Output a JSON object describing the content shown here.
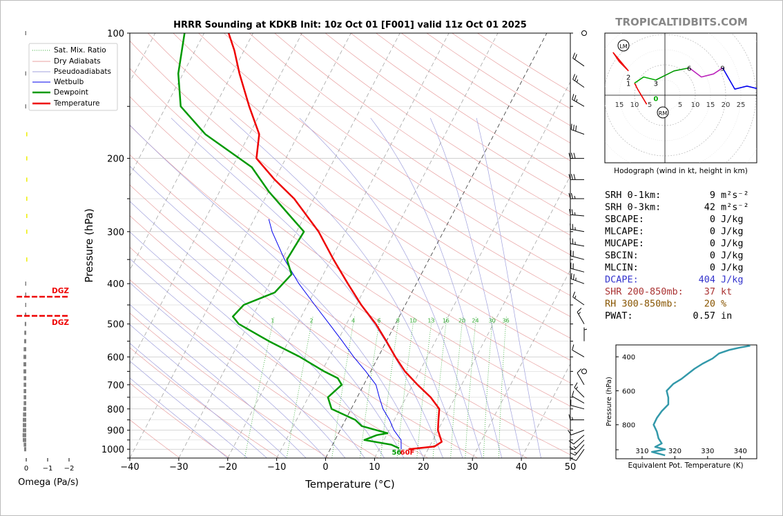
{
  "header": {
    "title": "HRRR Sounding at KDKB Init: 10z Oct 01 [F001] valid 11z Oct 01 2025",
    "watermark": "TROPICALTIDBITS.COM"
  },
  "colors": {
    "temperature": "#ee0000",
    "dewpoint": "#009900",
    "wetbulb": "#0000ee",
    "dry_adiabat": "#e8a0a0",
    "moist_adiabat": "#a0a0dd",
    "mixing_ratio": "#33aa33",
    "dgz": "#ee0000",
    "omega_pos": "#808080",
    "omega_neg": "#eeee00",
    "theta_e": "#3399aa",
    "hodo_0_1": "#ee0000",
    "hodo_1_3": "#00aa00",
    "hodo_3_6": "#009900",
    "hodo_6_9": "#bb22bb",
    "hodo_9_12": "#0000ee",
    "dcape": "#3333cc",
    "shr": "#aa3333",
    "rh": "#885500"
  },
  "legend": {
    "items": [
      "Sat. Mix. Ratio",
      "Dry Adiabats",
      "Pseudoadiabats",
      "Wetbulb",
      "Dewpoint",
      "Temperature"
    ]
  },
  "chart_data": [
    {
      "type": "line",
      "title": "HRRR Sounding at KDKB Init: 10z Oct 01 [F001] valid 11z Oct 01 2025",
      "xlabel": "Temperature (°C)",
      "ylabel": "Pressure (hPa)",
      "xlim": [
        -40,
        50
      ],
      "ylim": [
        1050,
        100
      ],
      "y_scale": "log",
      "skew": true,
      "x_ticks": [
        -40,
        -30,
        -20,
        -10,
        0,
        10,
        20,
        30,
        40,
        50
      ],
      "y_ticks": [
        1000,
        900,
        800,
        700,
        600,
        500,
        400,
        300,
        200,
        100
      ],
      "grid": true,
      "legend_position": "top-left",
      "mixing_ratio_labels": [
        1,
        2,
        4,
        6,
        8,
        10,
        13,
        16,
        20,
        24,
        30,
        36
      ],
      "surface_labels": {
        "dewpoint": "56",
        "temperature": "60F"
      },
      "series": [
        {
          "name": "Temperature",
          "points": [
            [
              1000,
              16.0
            ],
            [
              985,
              21.0
            ],
            [
              960,
              22.0
            ],
            [
              930,
              21.0
            ],
            [
              900,
              20.0
            ],
            [
              850,
              19.0
            ],
            [
              800,
              18.0
            ],
            [
              750,
              15.0
            ],
            [
              700,
              11.0
            ],
            [
              650,
              7.0
            ],
            [
              600,
              3.5
            ],
            [
              550,
              0.0
            ],
            [
              500,
              -4.0
            ],
            [
              450,
              -9.0
            ],
            [
              400,
              -14.0
            ],
            [
              350,
              -19.5
            ],
            [
              300,
              -25.5
            ],
            [
              250,
              -34.0
            ],
            [
              225,
              -40.0
            ],
            [
              200,
              -46.0
            ],
            [
              175,
              -48.0
            ],
            [
              150,
              -53.0
            ],
            [
              125,
              -58.5
            ],
            [
              110,
              -62.0
            ],
            [
              100,
              -65.0
            ]
          ]
        },
        {
          "name": "Dewpoint",
          "points": [
            [
              995,
              14.0
            ],
            [
              975,
              12.0
            ],
            [
              950,
              6.0
            ],
            [
              925,
              8.0
            ],
            [
              915,
              10.0
            ],
            [
              880,
              4.0
            ],
            [
              850,
              2.0
            ],
            [
              800,
              -4.0
            ],
            [
              750,
              -6.0
            ],
            [
              700,
              -4.5
            ],
            [
              675,
              -6.0
            ],
            [
              650,
              -9.5
            ],
            [
              600,
              -16.0
            ],
            [
              550,
              -24.0
            ],
            [
              500,
              -32.0
            ],
            [
              480,
              -34.0
            ],
            [
              450,
              -33.0
            ],
            [
              420,
              -28.0
            ],
            [
              380,
              -26.5
            ],
            [
              350,
              -29.0
            ],
            [
              300,
              -28.5
            ],
            [
              275,
              -33.0
            ],
            [
              240,
              -40.0
            ],
            [
              210,
              -46.0
            ],
            [
              175,
              -59.0
            ],
            [
              150,
              -67.0
            ],
            [
              125,
              -71.0
            ],
            [
              100,
              -74.0
            ]
          ]
        },
        {
          "name": "Wetbulb",
          "points": [
            [
              1000,
              14.5
            ],
            [
              950,
              13.5
            ],
            [
              900,
              11.0
            ],
            [
              850,
              9.0
            ],
            [
              800,
              6.5
            ],
            [
              750,
              4.5
            ],
            [
              700,
              2.5
            ],
            [
              650,
              -1.0
            ],
            [
              600,
              -5.0
            ],
            [
              550,
              -9.0
            ],
            [
              500,
              -13.5
            ],
            [
              450,
              -18.5
            ],
            [
              400,
              -24.0
            ],
            [
              350,
              -29.5
            ],
            [
              300,
              -35.0
            ],
            [
              280,
              -37.0
            ]
          ]
        }
      ]
    },
    {
      "type": "line",
      "title": "",
      "xlabel": "Hodograph (wind in kt, height in km)",
      "ylabel": "",
      "x_tick_labels": [
        "15",
        "10",
        "5",
        "5",
        "10",
        "15",
        "20",
        "25"
      ],
      "markers": {
        "storm_left": "LM",
        "storm_right": "RM"
      },
      "height_labels": [
        "0",
        "1",
        "2",
        "3",
        "6",
        "9"
      ],
      "series": [
        {
          "name": "0-1 km",
          "points": [
            [
              -6,
              -3
            ],
            [
              -9,
              2
            ],
            [
              -10,
              4
            ]
          ]
        },
        {
          "name": "1-3 km",
          "points": [
            [
              -10,
              4
            ],
            [
              -7,
              6
            ],
            [
              -3,
              5
            ]
          ]
        },
        {
          "name": "3-6 km",
          "points": [
            [
              -3,
              5
            ],
            [
              3,
              8
            ],
            [
              8,
              9
            ]
          ]
        },
        {
          "name": "6-9 km",
          "points": [
            [
              8,
              9
            ],
            [
              12,
              6
            ],
            [
              16,
              7
            ],
            [
              19,
              9
            ]
          ]
        },
        {
          "name": "9-12 km",
          "points": [
            [
              19,
              9
            ],
            [
              23,
              2
            ],
            [
              27,
              3
            ],
            [
              31,
              2
            ]
          ]
        },
        {
          "name": "upper",
          "points": [
            [
              -12,
              8
            ],
            [
              -17,
              14
            ],
            [
              -15,
              11
            ],
            [
              -12,
              8
            ]
          ]
        }
      ]
    },
    {
      "type": "line",
      "title": "",
      "xlabel": "Equivalent Pot. Temperature (K)",
      "ylabel": "Pressure (hPa)",
      "xlim": [
        302,
        345
      ],
      "ylim": [
        1000,
        330
      ],
      "x_ticks": [
        310,
        320,
        330,
        340
      ],
      "y_ticks": [
        400,
        600,
        800
      ],
      "series": [
        {
          "name": "Theta-e",
          "points": [
            [
              980,
              317.0
            ],
            [
              960,
              313.0
            ],
            [
              945,
              317.0
            ],
            [
              930,
              314.0
            ],
            [
              910,
              316.0
            ],
            [
              880,
              315.0
            ],
            [
              840,
              314.5
            ],
            [
              800,
              313.5
            ],
            [
              760,
              314.5
            ],
            [
              720,
              316.0
            ],
            [
              680,
              318.0
            ],
            [
              640,
              318.0
            ],
            [
              600,
              317.5
            ],
            [
              560,
              319.5
            ],
            [
              530,
              322.0
            ],
            [
              500,
              324.0
            ],
            [
              470,
              326.0
            ],
            [
              440,
              328.5
            ],
            [
              410,
              331.5
            ],
            [
              380,
              333.5
            ],
            [
              360,
              336.5
            ],
            [
              345,
              340.0
            ],
            [
              335,
              343.0
            ]
          ]
        }
      ]
    },
    {
      "type": "bar",
      "title": "",
      "xlabel": "Omega (Pa/s)",
      "x_tick_labels": [
        "0",
        "−1",
        "−2"
      ],
      "xlim": [
        0.15,
        -2.5
      ],
      "labels": {
        "dgz_label": "DGZ"
      },
      "dgz_bounds": [
        430,
        478
      ],
      "levels": [
        1000,
        975,
        950,
        925,
        900,
        875,
        850,
        825,
        800,
        775,
        750,
        725,
        700,
        675,
        650,
        625,
        600,
        575,
        550,
        525,
        500,
        475,
        450,
        425,
        400,
        350,
        300,
        275,
        250,
        225,
        200,
        175,
        150,
        125,
        100
      ],
      "values": [
        0.1,
        0.12,
        0.16,
        0.17,
        0.16,
        0.16,
        0.16,
        0.15,
        0.14,
        0.12,
        0.12,
        0.12,
        0.12,
        0.12,
        0.13,
        0.13,
        0.13,
        0.12,
        0.1,
        0.09,
        0.07,
        0.06,
        0.04,
        0.03,
        0.02,
        -0.01,
        -0.02,
        -0.02,
        -0.03,
        -0.04,
        -0.03,
        -0.02,
        0.01,
        0.02,
        0.01
      ]
    }
  ],
  "indices": [
    {
      "label": "SRH 0-1km:",
      "value": "9",
      "unit": "m²s⁻²",
      "color_key": null
    },
    {
      "label": "SRH 0-3km:",
      "value": "42",
      "unit": "m²s⁻²",
      "color_key": null
    },
    {
      "label": "SBCAPE:",
      "value": "0",
      "unit": "J/kg",
      "color_key": null
    },
    {
      "label": "MLCAPE:",
      "value": "0",
      "unit": "J/kg",
      "color_key": null
    },
    {
      "label": "MUCAPE:",
      "value": "0",
      "unit": "J/kg",
      "color_key": null
    },
    {
      "label": "SBCIN:",
      "value": "0",
      "unit": "J/kg",
      "color_key": null
    },
    {
      "label": "MLCIN:",
      "value": "0",
      "unit": "J/kg",
      "color_key": null
    },
    {
      "label": "DCAPE:",
      "value": "404",
      "unit": "J/kg",
      "color_key": "dcape"
    },
    {
      "label": "SHR 200-850mb:",
      "value": "37",
      "unit": "kt",
      "color_key": "shr"
    },
    {
      "label": "RH 300-850mb:",
      "value": "20",
      "unit": "%",
      "color_key": "rh"
    },
    {
      "label": "PWAT:",
      "value": "0.57",
      "unit": "in",
      "color_key": null
    }
  ],
  "wind_barbs": [
    {
      "p": 1000,
      "dir": 215,
      "kt": 10
    },
    {
      "p": 975,
      "dir": 220,
      "kt": 15
    },
    {
      "p": 950,
      "dir": 225,
      "kt": 15
    },
    {
      "p": 925,
      "dir": 230,
      "kt": 10
    },
    {
      "p": 900,
      "dir": 250,
      "kt": 10
    },
    {
      "p": 850,
      "dir": 270,
      "kt": 15
    },
    {
      "p": 800,
      "dir": 285,
      "kt": 10
    },
    {
      "p": 775,
      "dir": 300,
      "kt": 10
    },
    {
      "p": 750,
      "dir": 315,
      "kt": 15
    },
    {
      "p": 700,
      "dir": 330,
      "kt": 10
    },
    {
      "p": 650,
      "dir": 0,
      "kt": 0
    },
    {
      "p": 600,
      "dir": 300,
      "kt": 10
    },
    {
      "p": 550,
      "dir": 0,
      "kt": 5
    },
    {
      "p": 500,
      "dir": 330,
      "kt": 15
    },
    {
      "p": 450,
      "dir": 305,
      "kt": 15
    },
    {
      "p": 400,
      "dir": 290,
      "kt": 25
    },
    {
      "p": 375,
      "dir": 285,
      "kt": 20
    },
    {
      "p": 350,
      "dir": 285,
      "kt": 20
    },
    {
      "p": 325,
      "dir": 280,
      "kt": 25
    },
    {
      "p": 300,
      "dir": 280,
      "kt": 25
    },
    {
      "p": 275,
      "dir": 275,
      "kt": 25
    },
    {
      "p": 250,
      "dir": 270,
      "kt": 25
    },
    {
      "p": 225,
      "dir": 270,
      "kt": 30
    },
    {
      "p": 200,
      "dir": 270,
      "kt": 30
    },
    {
      "p": 175,
      "dir": 290,
      "kt": 30
    },
    {
      "p": 150,
      "dir": 300,
      "kt": 25
    },
    {
      "p": 135,
      "dir": 305,
      "kt": 25
    },
    {
      "p": 120,
      "dir": 305,
      "kt": 20
    },
    {
      "p": 100,
      "dir": 0,
      "kt": 0
    }
  ]
}
